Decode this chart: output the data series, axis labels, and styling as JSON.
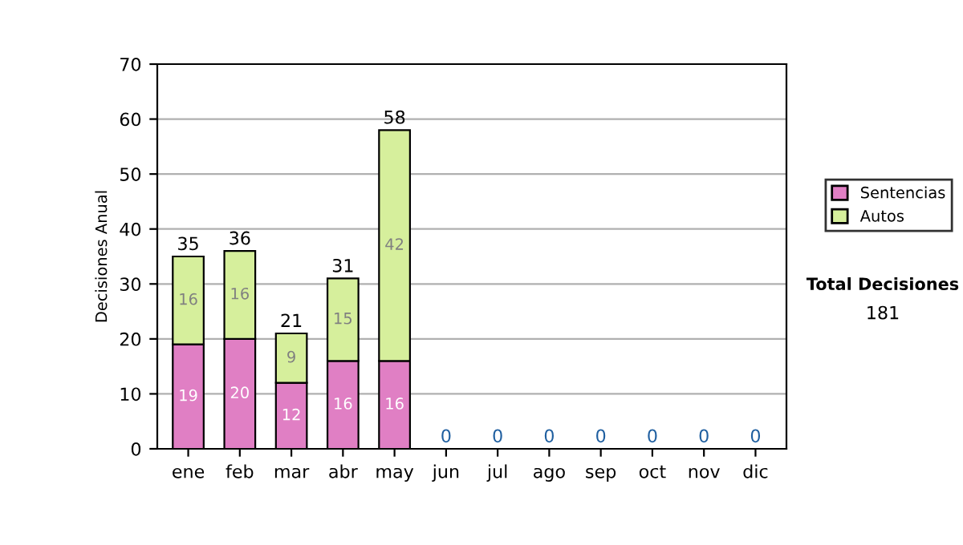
{
  "chart_data": {
    "type": "bar",
    "stacked": true,
    "ylabel": "Decisiones Anual",
    "categories": [
      "ene",
      "feb",
      "mar",
      "abr",
      "may",
      "jun",
      "jul",
      "ago",
      "sep",
      "oct",
      "nov",
      "dic"
    ],
    "series": [
      {
        "name": "Sentencias",
        "color": "#e07fc4",
        "values": [
          19,
          20,
          12,
          16,
          16,
          0,
          0,
          0,
          0,
          0,
          0,
          0
        ],
        "value_labels": [
          "19",
          "20",
          "12",
          "16",
          "16",
          null,
          null,
          null,
          null,
          null,
          null,
          null
        ]
      },
      {
        "name": "Autos",
        "color": "#d6ef9c",
        "values": [
          16,
          16,
          9,
          15,
          42,
          0,
          0,
          0,
          0,
          0,
          0,
          0
        ],
        "value_labels": [
          "16",
          "16",
          "9",
          "15",
          "42",
          null,
          null,
          null,
          null,
          null,
          null,
          null
        ]
      }
    ],
    "totals": [
      "35",
      "36",
      "21",
      "31",
      "58",
      "0",
      "0",
      "0",
      "0",
      "0",
      "0",
      "0"
    ],
    "ylim": [
      0,
      70
    ],
    "yticks": [
      0,
      10,
      20,
      30,
      40,
      50,
      60,
      70
    ],
    "grid": "y",
    "legend": "right",
    "annotations": [
      "Total Decisiones",
      "181"
    ]
  }
}
